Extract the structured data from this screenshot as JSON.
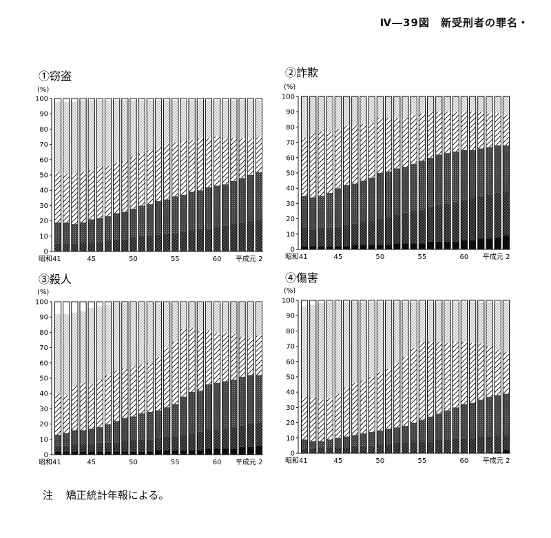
{
  "header": {
    "title": "Ⅳ―39図　新受刑者の罪名・"
  },
  "note": {
    "label": "注",
    "text": "矯正統計年報による。"
  },
  "common": {
    "unit": "(%)",
    "yticks": [
      "0",
      "10",
      "20",
      "30",
      "40",
      "50",
      "60",
      "70",
      "80",
      "90",
      "100"
    ],
    "xtick_labels": [
      "昭和41",
      "45",
      "50",
      "55",
      "60",
      "平成元 2"
    ]
  },
  "chart_data": [
    {
      "type": "bar",
      "stacked": true,
      "title": "①窃盗",
      "ylabel": "(%)",
      "ylim": [
        0,
        100
      ],
      "categories": [
        "41",
        "42",
        "43",
        "44",
        "45",
        "46",
        "47",
        "48",
        "49",
        "50",
        "51",
        "52",
        "53",
        "54",
        "55",
        "56",
        "57",
        "58",
        "59",
        "60",
        "61",
        "62",
        "63",
        "元",
        "2"
      ],
      "boundaries": {
        "b1": [
          0,
          0,
          0,
          0,
          0,
          0,
          0,
          0,
          0,
          0,
          0,
          0,
          0,
          0,
          0,
          0,
          0,
          0,
          0,
          0,
          0,
          0,
          0,
          0,
          0
        ],
        "b2": [
          5,
          5,
          5,
          6,
          6,
          6,
          7,
          8,
          8,
          9,
          10,
          10,
          11,
          12,
          12,
          13,
          14,
          15,
          15,
          16,
          17,
          18,
          19,
          20,
          21
        ],
        "b3": [
          19,
          19,
          18,
          19,
          21,
          22,
          23,
          25,
          26,
          28,
          30,
          31,
          33,
          34,
          36,
          37,
          39,
          40,
          42,
          43,
          44,
          46,
          48,
          50,
          52
        ],
        "b4": [
          52,
          51,
          51,
          52,
          53,
          55,
          56,
          58,
          59,
          62,
          64,
          66,
          68,
          70,
          71,
          72,
          73,
          74,
          74,
          75,
          74,
          74,
          74,
          74,
          75
        ],
        "b5": [
          98,
          98,
          98,
          99,
          99,
          99,
          99,
          99,
          99,
          99,
          99,
          99,
          99,
          99,
          99,
          99,
          99,
          99,
          99,
          99,
          99,
          99,
          99,
          99,
          99
        ]
      }
    },
    {
      "type": "bar",
      "stacked": true,
      "title": "②詐欺",
      "ylabel": "(%)",
      "ylim": [
        0,
        100
      ],
      "categories": [
        "41",
        "42",
        "43",
        "44",
        "45",
        "46",
        "47",
        "48",
        "49",
        "50",
        "51",
        "52",
        "53",
        "54",
        "55",
        "56",
        "57",
        "58",
        "59",
        "60",
        "61",
        "62",
        "63",
        "元",
        "2"
      ],
      "boundaries": {
        "b1": [
          2,
          2,
          2,
          2,
          2,
          2,
          3,
          3,
          3,
          3,
          3,
          4,
          4,
          4,
          4,
          5,
          5,
          5,
          5,
          6,
          6,
          7,
          7,
          8,
          9
        ],
        "b2": [
          14,
          13,
          14,
          14,
          15,
          16,
          17,
          18,
          19,
          20,
          21,
          23,
          24,
          25,
          26,
          28,
          29,
          30,
          31,
          32,
          34,
          35,
          36,
          37,
          38
        ],
        "b3": [
          35,
          34,
          35,
          37,
          40,
          42,
          43,
          45,
          47,
          50,
          51,
          53,
          54,
          56,
          58,
          60,
          62,
          63,
          64,
          65,
          65,
          66,
          67,
          68,
          68
        ],
        "b4": [
          73,
          76,
          77,
          77,
          79,
          81,
          81,
          82,
          83,
          86,
          86,
          86,
          86,
          88,
          89,
          90,
          90,
          90,
          90,
          90,
          90,
          90,
          89,
          89,
          88
        ],
        "b5": [
          100,
          100,
          100,
          100,
          100,
          100,
          100,
          100,
          100,
          100,
          100,
          100,
          100,
          100,
          100,
          100,
          100,
          100,
          100,
          100,
          100,
          100,
          100,
          100,
          100
        ]
      }
    },
    {
      "type": "bar",
      "stacked": true,
      "title": "③殺人",
      "ylabel": "(%)",
      "ylim": [
        0,
        100
      ],
      "categories": [
        "41",
        "42",
        "43",
        "44",
        "45",
        "46",
        "47",
        "48",
        "49",
        "50",
        "51",
        "52",
        "53",
        "54",
        "55",
        "56",
        "57",
        "58",
        "59",
        "60",
        "61",
        "62",
        "63",
        "元",
        "2"
      ],
      "boundaries": {
        "b1": [
          2,
          2,
          2,
          2,
          2,
          2,
          2,
          2,
          2,
          2,
          2,
          2,
          3,
          3,
          3,
          3,
          3,
          3,
          4,
          4,
          4,
          4,
          5,
          5,
          6
        ],
        "b2": [
          6,
          6,
          7,
          7,
          7,
          8,
          8,
          8,
          9,
          9,
          10,
          10,
          11,
          12,
          12,
          13,
          14,
          15,
          16,
          16,
          17,
          18,
          19,
          20,
          21
        ],
        "b3": [
          13,
          14,
          16,
          16,
          17,
          18,
          20,
          22,
          24,
          25,
          27,
          28,
          29,
          31,
          33,
          38,
          41,
          42,
          46,
          47,
          48,
          49,
          51,
          52,
          52
        ],
        "b4": [
          40,
          39,
          45,
          47,
          46,
          49,
          52,
          55,
          56,
          58,
          59,
          60,
          64,
          70,
          74,
          82,
          83,
          81,
          81,
          80,
          80,
          79,
          77,
          76,
          78
        ],
        "b5": [
          92,
          92,
          93,
          94,
          96,
          97,
          98,
          99,
          99,
          99,
          99,
          99,
          99,
          99,
          99,
          99,
          99,
          99,
          99,
          99,
          99,
          99,
          99,
          99,
          99
        ]
      }
    },
    {
      "type": "bar",
      "stacked": true,
      "title": "④傷害",
      "ylabel": "(%)",
      "ylim": [
        0,
        100
      ],
      "categories": [
        "41",
        "42",
        "43",
        "44",
        "45",
        "46",
        "47",
        "48",
        "49",
        "50",
        "51",
        "52",
        "53",
        "54",
        "55",
        "56",
        "57",
        "58",
        "59",
        "60",
        "61",
        "62",
        "63",
        "元",
        "2"
      ],
      "boundaries": {
        "b1": [
          0,
          0,
          0,
          0,
          0,
          0,
          0,
          0,
          0,
          0,
          0,
          0,
          0,
          0,
          0,
          0,
          0,
          0,
          0,
          0,
          0,
          0,
          0,
          1,
          2
        ],
        "b2": [
          3,
          3,
          4,
          4,
          4,
          4,
          5,
          5,
          5,
          6,
          6,
          7,
          7,
          8,
          8,
          8,
          9,
          9,
          10,
          10,
          10,
          11,
          11,
          12,
          12
        ],
        "b3": [
          9,
          8,
          8,
          9,
          10,
          11,
          12,
          13,
          14,
          15,
          16,
          17,
          18,
          20,
          22,
          24,
          26,
          28,
          30,
          32,
          33,
          35,
          37,
          38,
          39
        ],
        "b4": [
          37,
          36,
          35,
          36,
          39,
          43,
          46,
          48,
          50,
          53,
          55,
          59,
          63,
          69,
          73,
          73,
          73,
          72,
          73,
          73,
          72,
          72,
          70,
          68,
          66
        ],
        "b5": [
          96,
          97,
          98,
          99,
          99,
          99,
          99,
          99,
          99,
          99,
          99,
          99,
          99,
          99,
          99,
          99,
          99,
          99,
          99,
          99,
          99,
          99,
          99,
          99,
          99
        ]
      }
    }
  ]
}
